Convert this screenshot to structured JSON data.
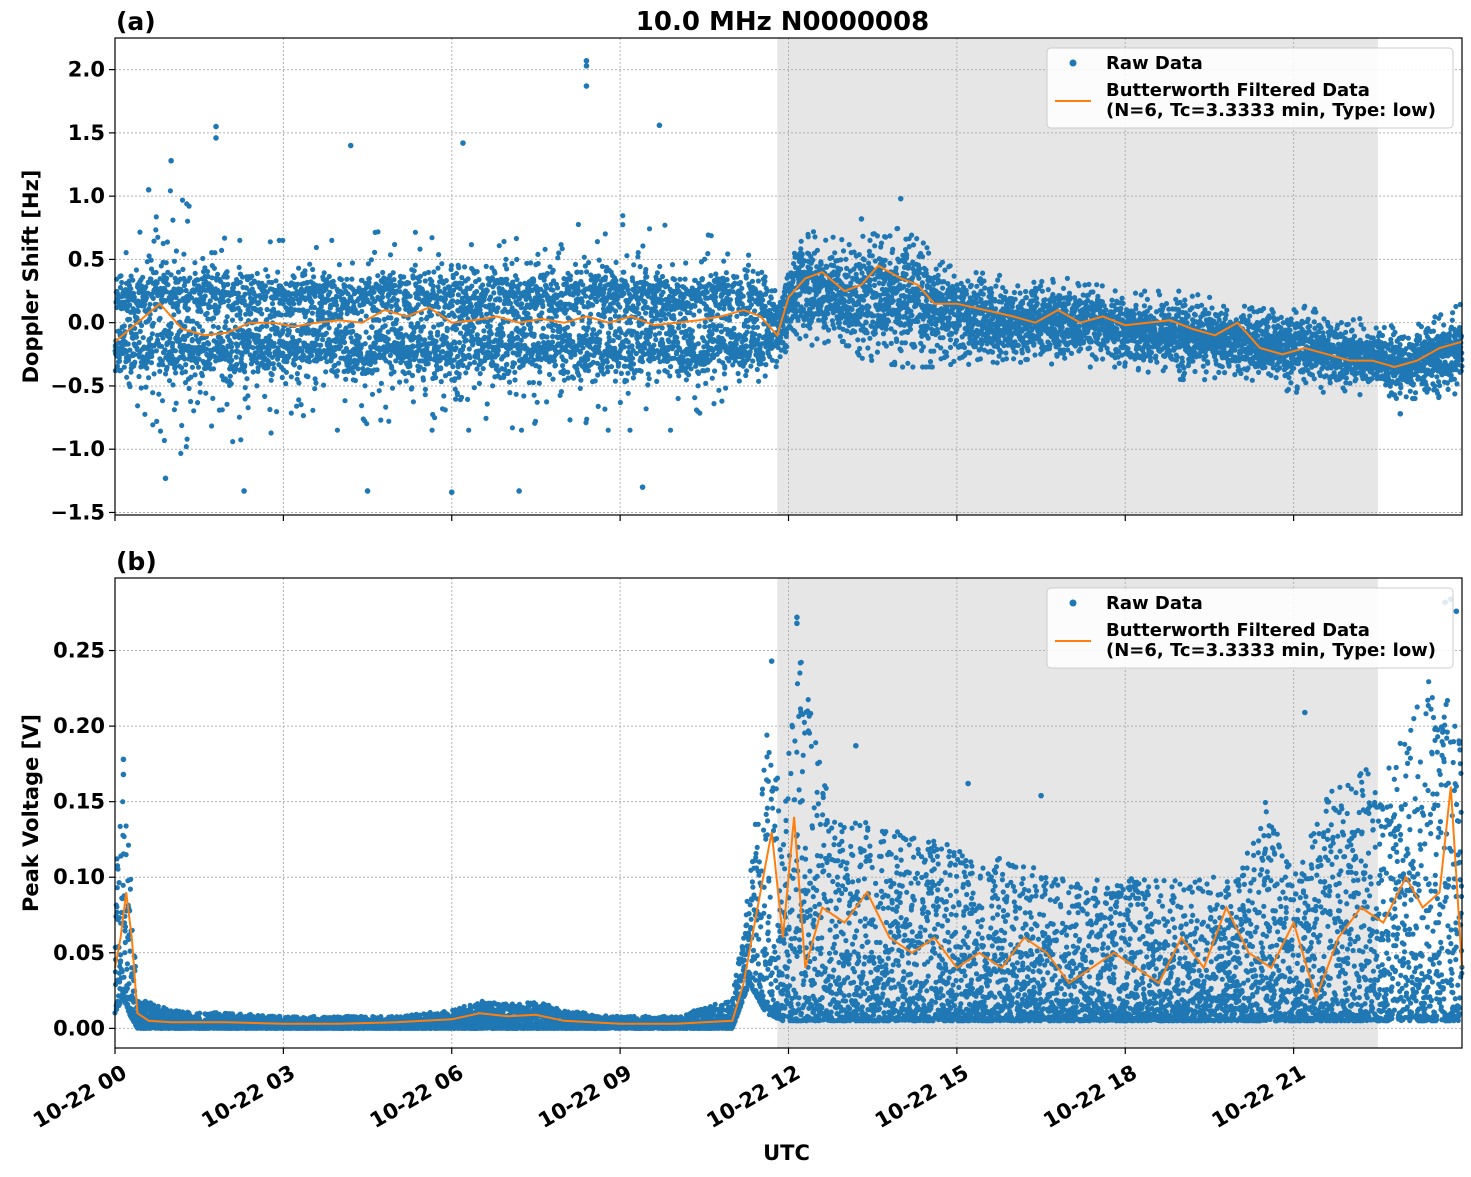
{
  "title": "10.0 MHz N0000008",
  "colors": {
    "raw": "#1f77b4",
    "filtered": "#ff7f0e",
    "shade": "#e6e6e6",
    "grid": "#b0b0b0"
  },
  "legend": {
    "raw_label": "Raw Data",
    "filtered_label_line1": "Butterworth Filtered Data",
    "filtered_label_line2": "(N=6, Tc=3.3333 min, Type: low)"
  },
  "chart_data": [
    {
      "panel": "(a)",
      "type": "scatter",
      "title": "10.0 MHz N0000008",
      "xlabel": "",
      "ylabel": "Doppler Shift [Hz]",
      "xlim_hours": [
        0,
        24
      ],
      "ylim": [
        -1.52,
        2.25
      ],
      "yticks": [
        -1.5,
        -1.0,
        -0.5,
        0.0,
        0.5,
        1.0,
        1.5,
        2.0
      ],
      "ytick_labels": [
        "−1.5",
        "−1.0",
        "−0.5",
        "0.0",
        "0.5",
        "1.0",
        "1.5",
        "2.0"
      ],
      "shaded_region_hours": [
        11.8,
        22.5
      ],
      "grid": true,
      "legend_position": "upper right",
      "series": [
        {
          "name": "Raw Data",
          "kind": "scatter",
          "description_hours": [
            0,
            24
          ],
          "envelope_x_hours": [
            0,
            1,
            2,
            3,
            4,
            5,
            6,
            7,
            8,
            9,
            10,
            11,
            11.5,
            11.8,
            12.2,
            13,
            14,
            15,
            16,
            17,
            18,
            19,
            20,
            21,
            22,
            23,
            24
          ],
          "envelope_upper": [
            0.4,
            1.0,
            0.6,
            0.6,
            0.6,
            0.7,
            0.6,
            0.6,
            0.7,
            0.8,
            0.7,
            0.6,
            0.4,
            0.2,
            0.7,
            0.6,
            0.7,
            0.4,
            0.3,
            0.3,
            0.2,
            0.2,
            0.1,
            0.1,
            0.0,
            -0.1,
            0.1
          ],
          "envelope_lower": [
            -0.5,
            -1.0,
            -0.9,
            -0.8,
            -0.8,
            -0.8,
            -0.8,
            -0.8,
            -0.8,
            -0.8,
            -0.8,
            -0.6,
            -0.4,
            -0.3,
            -0.1,
            -0.2,
            -0.3,
            -0.3,
            -0.3,
            -0.3,
            -0.3,
            -0.4,
            -0.4,
            -0.5,
            -0.5,
            -0.6,
            -0.5
          ],
          "outliers": [
            [
              1.8,
              1.55
            ],
            [
              1.8,
              1.46
            ],
            [
              8.4,
              2.07
            ],
            [
              8.4,
              2.03
            ],
            [
              8.4,
              1.87
            ],
            [
              9.7,
              1.56
            ],
            [
              6.2,
              1.42
            ],
            [
              4.2,
              1.4
            ],
            [
              2.3,
              -1.33
            ],
            [
              4.5,
              -1.33
            ],
            [
              6.0,
              -1.34
            ],
            [
              9.4,
              -1.3
            ],
            [
              7.2,
              -1.33
            ],
            [
              0.9,
              -1.23
            ],
            [
              1.0,
              1.28
            ],
            [
              14.0,
              0.98
            ],
            [
              13.3,
              0.82
            ],
            [
              22.9,
              -0.72
            ],
            [
              0.6,
              1.05
            ]
          ]
        },
        {
          "name": "Butterworth Filtered Data",
          "kind": "line",
          "x_hours": [
            0,
            0.4,
            0.8,
            1.0,
            1.2,
            1.6,
            2.0,
            2.4,
            2.8,
            3.2,
            3.6,
            4.0,
            4.4,
            4.8,
            5.2,
            5.6,
            6.0,
            6.4,
            6.8,
            7.2,
            7.6,
            8.0,
            8.4,
            8.8,
            9.2,
            9.6,
            10.0,
            10.4,
            10.8,
            11.2,
            11.5,
            11.8,
            12.0,
            12.3,
            12.6,
            13.0,
            13.3,
            13.6,
            14.0,
            14.3,
            14.6,
            15.0,
            15.5,
            16.0,
            16.4,
            16.8,
            17.2,
            17.6,
            18.0,
            18.4,
            18.8,
            19.2,
            19.6,
            20.0,
            20.4,
            20.8,
            21.2,
            21.6,
            22.0,
            22.4,
            22.8,
            23.2,
            23.6,
            24.0
          ],
          "values": [
            -0.15,
            0.0,
            0.15,
            0.05,
            -0.05,
            -0.1,
            -0.08,
            0.0,
            0.0,
            -0.03,
            0.0,
            0.02,
            0.0,
            0.1,
            0.05,
            0.12,
            0.0,
            0.02,
            0.05,
            0.0,
            0.03,
            0.0,
            0.05,
            0.0,
            0.05,
            -0.02,
            0.0,
            0.02,
            0.05,
            0.1,
            0.05,
            -0.1,
            0.2,
            0.35,
            0.4,
            0.25,
            0.3,
            0.45,
            0.35,
            0.3,
            0.15,
            0.15,
            0.1,
            0.05,
            0.0,
            0.1,
            0.0,
            0.05,
            -0.02,
            0.0,
            0.02,
            -0.05,
            -0.1,
            0.0,
            -0.2,
            -0.25,
            -0.2,
            -0.25,
            -0.3,
            -0.3,
            -0.35,
            -0.3,
            -0.2,
            -0.15
          ]
        }
      ]
    },
    {
      "panel": "(b)",
      "type": "scatter",
      "xlabel": "UTC",
      "ylabel": "Peak Voltage [V]",
      "xlim_hours": [
        0,
        24
      ],
      "ylim": [
        -0.013,
        0.298
      ],
      "yticks": [
        0.0,
        0.05,
        0.1,
        0.15,
        0.2,
        0.25
      ],
      "ytick_labels": [
        "0.00",
        "0.05",
        "0.10",
        "0.15",
        "0.20",
        "0.25"
      ],
      "xticks_hours": [
        0,
        3,
        6,
        9,
        12,
        15,
        18,
        21
      ],
      "xtick_labels": [
        "10-22 00",
        "10-22 03",
        "10-22 06",
        "10-22 09",
        "10-22 12",
        "10-22 15",
        "10-22 18",
        "10-22 21"
      ],
      "shaded_region_hours": [
        11.8,
        22.5
      ],
      "grid": true,
      "legend_position": "upper right",
      "series": [
        {
          "name": "Raw Data",
          "kind": "scatter",
          "envelope_x_hours": [
            0,
            0.15,
            0.25,
            0.4,
            1,
            3,
            5,
            6,
            6.5,
            7,
            7.5,
            8,
            9,
            10,
            11,
            11.3,
            11.6,
            11.9,
            12.2,
            12.6,
            13,
            14,
            15,
            16,
            17,
            18,
            19,
            20,
            20.5,
            21,
            21.5,
            22,
            22.5,
            23,
            23.5,
            24
          ],
          "envelope_upper": [
            0.1,
            0.16,
            0.12,
            0.02,
            0.012,
            0.008,
            0.008,
            0.012,
            0.018,
            0.016,
            0.018,
            0.012,
            0.008,
            0.008,
            0.02,
            0.1,
            0.2,
            0.15,
            0.25,
            0.17,
            0.14,
            0.13,
            0.12,
            0.11,
            0.1,
            0.1,
            0.1,
            0.1,
            0.15,
            0.1,
            0.15,
            0.17,
            0.18,
            0.2,
            0.24,
            0.2
          ],
          "envelope_lower": [
            0.01,
            0.02,
            0.01,
            0.0,
            0.0,
            0.0,
            0.0,
            0.0,
            0.0,
            0.0,
            0.0,
            0.0,
            0.0,
            0.0,
            0.0,
            0.03,
            0.01,
            0.005,
            0.005,
            0.005,
            0.005,
            0.005,
            0.005,
            0.005,
            0.005,
            0.005,
            0.005,
            0.005,
            0.005,
            0.005,
            0.005,
            0.005,
            0.005,
            0.005,
            0.005,
            0.005
          ],
          "outliers": [
            [
              0.15,
              0.178
            ],
            [
              0.15,
              0.168
            ],
            [
              12.15,
              0.272
            ],
            [
              12.15,
              0.268
            ],
            [
              11.7,
              0.243
            ],
            [
              23.7,
              0.282
            ],
            [
              23.8,
              0.284
            ],
            [
              23.9,
              0.276
            ],
            [
              21.2,
              0.209
            ],
            [
              13.2,
              0.187
            ],
            [
              15.2,
              0.162
            ],
            [
              16.5,
              0.154
            ]
          ]
        },
        {
          "name": "Butterworth Filtered Data",
          "kind": "line",
          "x_hours": [
            0,
            0.1,
            0.2,
            0.3,
            0.4,
            0.6,
            1,
            2,
            3,
            4,
            5,
            6,
            6.5,
            7,
            7.5,
            8,
            9,
            10,
            11,
            11.2,
            11.5,
            11.7,
            11.9,
            12.1,
            12.3,
            12.6,
            13.0,
            13.4,
            13.8,
            14.2,
            14.6,
            15.0,
            15.4,
            15.8,
            16.2,
            16.6,
            17.0,
            17.4,
            17.8,
            18.2,
            18.6,
            19.0,
            19.4,
            19.8,
            20.2,
            20.6,
            21.0,
            21.4,
            21.8,
            22.2,
            22.6,
            23.0,
            23.3,
            23.6,
            23.8,
            24.0
          ],
          "values": [
            0.04,
            0.06,
            0.09,
            0.06,
            0.01,
            0.005,
            0.004,
            0.004,
            0.003,
            0.003,
            0.004,
            0.006,
            0.01,
            0.008,
            0.009,
            0.005,
            0.003,
            0.003,
            0.005,
            0.03,
            0.09,
            0.13,
            0.06,
            0.14,
            0.04,
            0.08,
            0.07,
            0.09,
            0.06,
            0.05,
            0.06,
            0.04,
            0.05,
            0.04,
            0.06,
            0.05,
            0.03,
            0.04,
            0.05,
            0.04,
            0.03,
            0.06,
            0.04,
            0.08,
            0.05,
            0.04,
            0.07,
            0.02,
            0.06,
            0.08,
            0.07,
            0.1,
            0.08,
            0.09,
            0.16,
            0.04
          ]
        }
      ]
    }
  ]
}
